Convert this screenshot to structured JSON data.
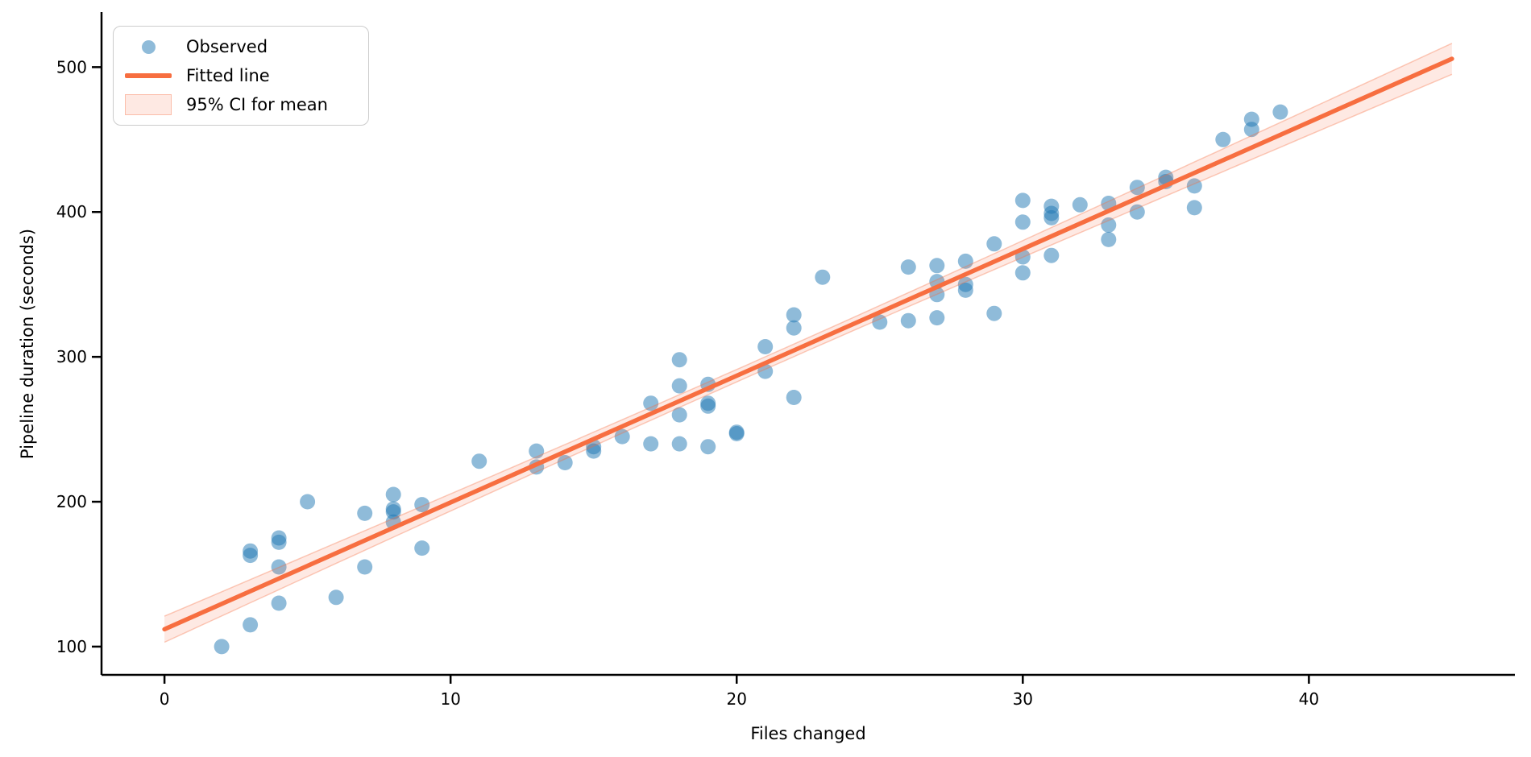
{
  "figure": {
    "background": "#ffffff"
  },
  "axes": {
    "xlabel": "Files changed",
    "ylabel": "Pipeline duration (seconds)"
  },
  "legend": {
    "position": "upper left",
    "items": [
      {
        "label": "Observed",
        "marker": "dot"
      },
      {
        "label": "Fitted line",
        "marker": "line"
      },
      {
        "label": "95% CI for mean",
        "marker": "patch"
      }
    ]
  },
  "colors": {
    "scatter_fill": "#1f77b4",
    "scatter_opacity": 0.5,
    "fit_line": "#f76e40",
    "ci_fill_opacity": 0.15,
    "ci_edge_opacity": 0.35,
    "axis": "#000000",
    "legend_border": "#cccccc",
    "background": "#ffffff"
  },
  "chart_data": {
    "type": "scatter",
    "title": "",
    "xlabel": "Files changed",
    "ylabel": "Pipeline duration (seconds)",
    "xlim": [
      -2.2,
      47.2
    ],
    "ylim": [
      80.5,
      538
    ],
    "x_ticks": [
      0,
      10,
      20,
      30,
      40
    ],
    "y_ticks": [
      100,
      200,
      300,
      400,
      500
    ],
    "grid": false,
    "legend_position": "upper left",
    "series": [
      {
        "name": "Observed",
        "type": "scatter",
        "points": [
          [
            2,
            100
          ],
          [
            3,
            115
          ],
          [
            3,
            163
          ],
          [
            3,
            166
          ],
          [
            4,
            130
          ],
          [
            4,
            155
          ],
          [
            4,
            172
          ],
          [
            4,
            175
          ],
          [
            5,
            200
          ],
          [
            6,
            134
          ],
          [
            7,
            155
          ],
          [
            7,
            192
          ],
          [
            8,
            186
          ],
          [
            8,
            193
          ],
          [
            8,
            195
          ],
          [
            8,
            205
          ],
          [
            9,
            168
          ],
          [
            9,
            198
          ],
          [
            11,
            228
          ],
          [
            13,
            224
          ],
          [
            13,
            235
          ],
          [
            14,
            227
          ],
          [
            15,
            235
          ],
          [
            15,
            238
          ],
          [
            16,
            245
          ],
          [
            17,
            240
          ],
          [
            17,
            268
          ],
          [
            18,
            240
          ],
          [
            18,
            260
          ],
          [
            18,
            280
          ],
          [
            18,
            298
          ],
          [
            19,
            238
          ],
          [
            19,
            266
          ],
          [
            19,
            268
          ],
          [
            19,
            281
          ],
          [
            20,
            247
          ],
          [
            20,
            248
          ],
          [
            21,
            290
          ],
          [
            21,
            307
          ],
          [
            22,
            272
          ],
          [
            22,
            320
          ],
          [
            22,
            329
          ],
          [
            23,
            355
          ],
          [
            25,
            324
          ],
          [
            26,
            325
          ],
          [
            26,
            362
          ],
          [
            27,
            327
          ],
          [
            27,
            343
          ],
          [
            27,
            352
          ],
          [
            27,
            363
          ],
          [
            28,
            346
          ],
          [
            28,
            350
          ],
          [
            28,
            366
          ],
          [
            29,
            330
          ],
          [
            29,
            378
          ],
          [
            30,
            358
          ],
          [
            30,
            369
          ],
          [
            30,
            393
          ],
          [
            30,
            408
          ],
          [
            31,
            370
          ],
          [
            31,
            396
          ],
          [
            31,
            399
          ],
          [
            31,
            404
          ],
          [
            32,
            405
          ],
          [
            33,
            381
          ],
          [
            33,
            391
          ],
          [
            33,
            406
          ],
          [
            34,
            400
          ],
          [
            34,
            417
          ],
          [
            35,
            421
          ],
          [
            35,
            424
          ],
          [
            36,
            403
          ],
          [
            36,
            418
          ],
          [
            37,
            450
          ],
          [
            38,
            457
          ],
          [
            38,
            464
          ],
          [
            39,
            469
          ]
        ]
      },
      {
        "name": "Fitted line",
        "type": "line",
        "slope": 8.75,
        "intercept": 112,
        "x_range": [
          0,
          45
        ]
      },
      {
        "name": "95% CI for mean",
        "type": "band",
        "x_range": [
          0,
          45
        ],
        "center_x": 20.5,
        "half_width_min": 4.3,
        "half_width_at_x0": 9.0,
        "half_width_at_x45": 10.7
      }
    ]
  }
}
